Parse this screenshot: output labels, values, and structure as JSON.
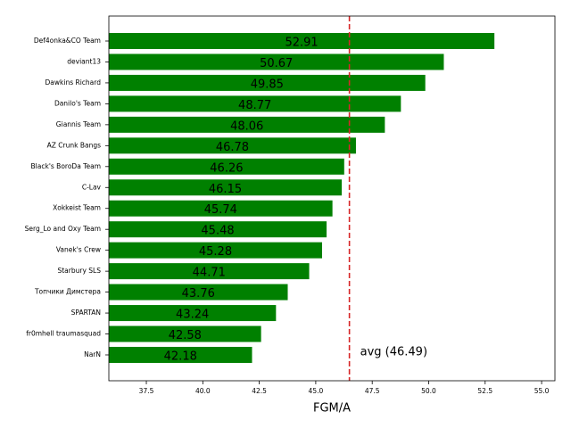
{
  "chart_data": {
    "type": "barh",
    "xlabel": "FGM/A",
    "categories": [
      "Def4onka&CO Team",
      "deviant13",
      "Dawkins Richard",
      "Danilo's Team",
      "Giannis Team",
      "AZ Crunk Bangs",
      "Black's BoroDa Team",
      "C-Lav",
      "Xokkeist Team",
      "Serg_Lo and Oxy Team",
      "Vanek's Crew",
      "Starbury SLS",
      "Топчики Димстера",
      "SPARTAN",
      "fr0mhell traumasquad",
      "NarN"
    ],
    "values": [
      52.91,
      50.67,
      49.85,
      48.77,
      48.06,
      46.78,
      46.26,
      46.15,
      45.74,
      45.48,
      45.28,
      44.71,
      43.76,
      43.24,
      42.58,
      42.18
    ],
    "color": "#008000",
    "xlim": [
      35.84,
      55.59
    ],
    "xticks": [
      37.5,
      {
        "value": 40,
        "label": "40.0"
      },
      42.5,
      {
        "value": 45,
        "label": "45.0"
      },
      47.5,
      {
        "value": 50,
        "label": "50.0"
      },
      52.5,
      {
        "value": 55,
        "label": "55.0"
      }
    ],
    "avg_line": {
      "value": 46.49,
      "label": "avg (46.49)",
      "color": "#d62728"
    },
    "grid": false
  }
}
